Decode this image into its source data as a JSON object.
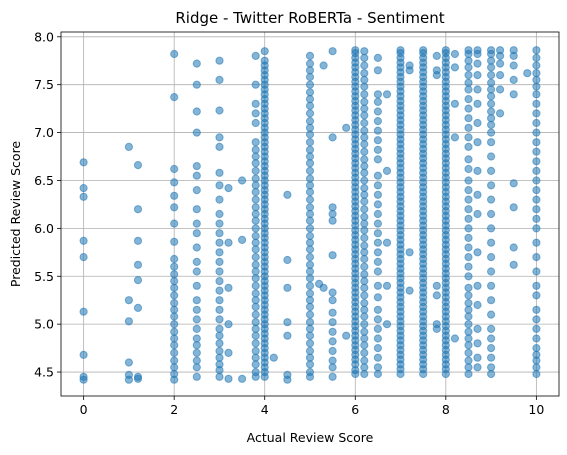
{
  "chart_data": {
    "type": "scatter",
    "title": "Ridge - Twitter RoBERTa - Sentiment",
    "xlabel": "Actual Review Score",
    "ylabel": "Predicted Review Score",
    "xlim": [
      -0.5,
      10.5
    ],
    "ylim": [
      4.25,
      8.05
    ],
    "xticks": [
      0,
      2,
      4,
      6,
      8,
      10
    ],
    "yticks": [
      4.5,
      5.0,
      5.5,
      6.0,
      6.5,
      7.0,
      7.5,
      8.0
    ],
    "xtick_labels": [
      "0",
      "2",
      "4",
      "6",
      "8",
      "10"
    ],
    "ytick_labels": [
      "4.5",
      "5.0",
      "5.5",
      "6.0",
      "6.5",
      "7.0",
      "7.5",
      "8.0"
    ],
    "grid": true,
    "color": "#1f77b4",
    "series": [
      {
        "columns": [
          {
            "x": 0,
            "y": [
              4.42,
              4.45,
              4.68,
              5.13,
              5.7,
              5.87,
              6.33,
              6.42,
              6.69
            ]
          },
          {
            "x": 1,
            "y": [
              4.42,
              4.47,
              4.6,
              5.03,
              5.25,
              6.85
            ]
          },
          {
            "x": 1.2,
            "y": [
              4.43,
              4.45,
              5.17,
              5.46,
              5.62,
              5.87,
              6.2,
              6.66
            ]
          },
          {
            "x": 2,
            "y": [
              4.42,
              4.48,
              4.55,
              4.62,
              4.7,
              4.78,
              4.85,
              4.92,
              5.0,
              5.08,
              5.15,
              5.22,
              5.3,
              5.38,
              5.45,
              5.52,
              5.6,
              5.68,
              5.86,
              6.05,
              6.22,
              6.34,
              6.48,
              6.62,
              7.37,
              7.82
            ]
          },
          {
            "x": 2.5,
            "y": [
              4.45,
              4.55,
              4.62,
              4.7,
              4.78,
              4.85,
              4.95,
              5.05,
              5.15,
              5.25,
              5.4,
              5.55,
              5.65,
              5.8,
              5.95,
              6.05,
              6.2,
              6.4,
              6.55,
              6.65,
              7.0,
              7.22,
              7.5,
              7.72
            ]
          },
          {
            "x": 3,
            "y": [
              4.45,
              4.52,
              4.58,
              4.65,
              4.72,
              4.8,
              4.88,
              4.95,
              5.05,
              5.15,
              5.25,
              5.35,
              5.45,
              5.55,
              5.65,
              5.75,
              5.85,
              5.95,
              6.05,
              6.15,
              6.3,
              6.45,
              6.58,
              6.85,
              6.95,
              7.23,
              7.55,
              7.75
            ]
          },
          {
            "x": 3.2,
            "y": [
              4.43,
              4.7,
              5.0,
              5.38,
              5.85,
              6.42
            ]
          },
          {
            "x": 3.5,
            "y": [
              4.43,
              5.88,
              6.5
            ]
          },
          {
            "x": 3.8,
            "y": [
              4.45,
              4.5,
              4.58,
              4.65,
              4.72,
              4.8,
              4.88,
              4.95,
              5.02,
              5.1,
              5.18,
              5.25,
              5.32,
              5.4,
              5.48,
              5.55,
              5.62,
              5.7,
              5.78,
              5.85,
              5.92,
              6.0,
              6.08,
              6.15,
              6.22,
              6.3,
              6.38,
              6.45,
              6.52,
              6.6,
              6.68,
              6.75,
              6.82,
              6.9,
              7.1,
              7.2,
              7.3,
              7.5,
              7.8
            ]
          },
          {
            "x": 4,
            "y": [
              4.45,
              4.5,
              4.55,
              4.6,
              4.65,
              4.7,
              4.75,
              4.8,
              4.85,
              4.9,
              4.95,
              5.0,
              5.05,
              5.1,
              5.15,
              5.2,
              5.25,
              5.3,
              5.35,
              5.4,
              5.45,
              5.5,
              5.55,
              5.6,
              5.65,
              5.7,
              5.75,
              5.8,
              5.85,
              5.9,
              5.95,
              6.0,
              6.05,
              6.1,
              6.15,
              6.2,
              6.25,
              6.3,
              6.35,
              6.4,
              6.45,
              6.5,
              6.55,
              6.6,
              6.65,
              6.7,
              6.75,
              6.8,
              6.85,
              6.9,
              6.95,
              7.0,
              7.05,
              7.1,
              7.15,
              7.2,
              7.25,
              7.3,
              7.35,
              7.4,
              7.45,
              7.5,
              7.55,
              7.6,
              7.65,
              7.7,
              7.75,
              7.85
            ]
          },
          {
            "x": 4.2,
            "y": [
              4.65
            ]
          },
          {
            "x": 4.5,
            "y": [
              4.42,
              4.47,
              4.88,
              5.02,
              5.38,
              5.67,
              6.35
            ]
          },
          {
            "x": 5,
            "y": [
              4.45,
              4.5,
              4.58,
              4.65,
              4.72,
              4.8,
              4.88,
              4.95,
              5.02,
              5.1,
              5.18,
              5.25,
              5.32,
              5.4,
              5.48,
              5.55,
              5.62,
              5.7,
              5.78,
              5.85,
              5.92,
              6.0,
              6.08,
              6.15,
              6.22,
              6.3,
              6.38,
              6.45,
              6.52,
              6.6,
              6.68,
              6.75,
              6.82,
              6.9,
              6.98,
              7.05,
              7.12,
              7.2,
              7.28,
              7.35,
              7.42,
              7.5,
              7.58,
              7.65,
              7.72,
              7.8
            ]
          },
          {
            "x": 5.2,
            "y": [
              5.42
            ]
          },
          {
            "x": 5.3,
            "y": [
              5.38,
              7.7
            ]
          },
          {
            "x": 5.5,
            "y": [
              4.45,
              4.55,
              4.62,
              4.72,
              4.82,
              4.92,
              5.02,
              5.12,
              5.25,
              5.33,
              5.72,
              6.08,
              6.15,
              6.22,
              6.95,
              7.85
            ]
          },
          {
            "x": 5.8,
            "y": [
              4.88,
              7.05
            ]
          },
          {
            "x": 6,
            "y": [
              4.48,
              4.52,
              4.58,
              4.63,
              4.68,
              4.73,
              4.78,
              4.83,
              4.88,
              4.93,
              4.98,
              5.03,
              5.08,
              5.13,
              5.18,
              5.23,
              5.28,
              5.33,
              5.38,
              5.43,
              5.48,
              5.53,
              5.58,
              5.63,
              5.68,
              5.73,
              5.78,
              5.83,
              5.88,
              5.93,
              5.98,
              6.03,
              6.08,
              6.13,
              6.18,
              6.23,
              6.28,
              6.33,
              6.38,
              6.43,
              6.48,
              6.53,
              6.58,
              6.63,
              6.68,
              6.73,
              6.78,
              6.83,
              6.88,
              6.93,
              6.98,
              7.03,
              7.08,
              7.13,
              7.18,
              7.23,
              7.28,
              7.33,
              7.38,
              7.43,
              7.48,
              7.53,
              7.58,
              7.63,
              7.68,
              7.73,
              7.78,
              7.83,
              7.86
            ]
          },
          {
            "x": 6.2,
            "y": [
              4.48,
              4.55,
              4.62,
              4.7,
              4.78,
              4.85,
              4.92,
              5.0,
              5.08,
              5.15,
              5.22,
              5.3,
              5.38,
              5.45,
              5.52,
              5.6,
              5.68,
              5.75,
              5.82,
              5.9,
              5.98,
              6.05,
              6.12,
              6.2,
              6.28,
              6.35,
              6.42,
              6.5,
              6.58,
              6.65,
              6.72,
              6.8,
              6.88,
              6.95,
              7.02,
              7.1,
              7.18,
              7.25,
              7.32,
              7.4,
              7.48,
              7.55,
              7.62,
              7.7,
              7.78,
              7.85
            ]
          },
          {
            "x": 6.5,
            "y": [
              4.48,
              4.55,
              4.65,
              4.75,
              4.85,
              4.95,
              5.05,
              5.15,
              5.28,
              5.4,
              5.55,
              5.65,
              5.75,
              5.85,
              5.95,
              6.05,
              6.15,
              6.25,
              6.35,
              6.45,
              6.55,
              6.72,
              6.82,
              6.92,
              7.02,
              7.12,
              7.22,
              7.32,
              7.4,
              7.65,
              7.78
            ]
          },
          {
            "x": 6.7,
            "y": [
              5.0,
              5.4,
              5.85,
              6.6,
              7.4
            ]
          },
          {
            "x": 7,
            "y": [
              4.48,
              4.53,
              4.58,
              4.63,
              4.68,
              4.73,
              4.78,
              4.83,
              4.88,
              4.93,
              4.98,
              5.03,
              5.08,
              5.13,
              5.18,
              5.23,
              5.28,
              5.33,
              5.38,
              5.43,
              5.48,
              5.53,
              5.58,
              5.63,
              5.68,
              5.73,
              5.78,
              5.83,
              5.88,
              5.93,
              5.98,
              6.03,
              6.08,
              6.13,
              6.18,
              6.23,
              6.28,
              6.33,
              6.38,
              6.43,
              6.48,
              6.53,
              6.58,
              6.63,
              6.68,
              6.73,
              6.78,
              6.83,
              6.88,
              6.93,
              6.98,
              7.03,
              7.08,
              7.13,
              7.18,
              7.23,
              7.28,
              7.33,
              7.38,
              7.43,
              7.48,
              7.53,
              7.58,
              7.63,
              7.68,
              7.73,
              7.78,
              7.83,
              7.86
            ]
          },
          {
            "x": 7.2,
            "y": [
              5.35,
              5.75,
              7.65,
              7.7
            ]
          },
          {
            "x": 7.5,
            "y": [
              4.48,
              4.53,
              4.58,
              4.63,
              4.68,
              4.73,
              4.78,
              4.83,
              4.88,
              4.93,
              4.98,
              5.03,
              5.08,
              5.13,
              5.18,
              5.23,
              5.28,
              5.33,
              5.38,
              5.43,
              5.48,
              5.53,
              5.58,
              5.63,
              5.68,
              5.73,
              5.78,
              5.83,
              5.88,
              5.93,
              5.98,
              6.03,
              6.08,
              6.13,
              6.18,
              6.23,
              6.28,
              6.33,
              6.38,
              6.43,
              6.48,
              6.53,
              6.58,
              6.63,
              6.68,
              6.73,
              6.78,
              6.83,
              6.88,
              6.93,
              6.98,
              7.03,
              7.08,
              7.13,
              7.18,
              7.23,
              7.28,
              7.33,
              7.38,
              7.43,
              7.48,
              7.53,
              7.58,
              7.63,
              7.68,
              7.73,
              7.78,
              7.83,
              7.86
            ]
          },
          {
            "x": 7.8,
            "y": [
              4.95,
              5.0,
              5.3,
              5.4,
              7.6,
              7.65,
              7.8
            ]
          },
          {
            "x": 8,
            "y": [
              4.48,
              4.53,
              4.58,
              4.63,
              4.68,
              4.73,
              4.78,
              4.83,
              4.88,
              4.93,
              4.98,
              5.03,
              5.08,
              5.13,
              5.18,
              5.23,
              5.28,
              5.33,
              5.38,
              5.43,
              5.48,
              5.53,
              5.58,
              5.63,
              5.68,
              5.73,
              5.78,
              5.83,
              5.88,
              5.93,
              5.98,
              6.03,
              6.08,
              6.13,
              6.18,
              6.23,
              6.28,
              6.33,
              6.38,
              6.43,
              6.48,
              6.53,
              6.58,
              6.63,
              6.68,
              6.73,
              6.78,
              6.83,
              6.88,
              6.93,
              6.98,
              7.03,
              7.08,
              7.13,
              7.18,
              7.23,
              7.28,
              7.33,
              7.38,
              7.43,
              7.48,
              7.53,
              7.58,
              7.63,
              7.68,
              7.73,
              7.78,
              7.83,
              7.86
            ]
          },
          {
            "x": 8.2,
            "y": [
              4.85,
              6.95,
              7.3,
              7.68,
              7.82
            ]
          },
          {
            "x": 8.5,
            "y": [
              4.48,
              4.55,
              4.62,
              4.7,
              4.78,
              4.85,
              4.92,
              5.0,
              5.08,
              5.15,
              5.22,
              5.3,
              5.38,
              5.5,
              5.6,
              5.7,
              5.8,
              5.9,
              6.0,
              6.1,
              6.2,
              6.3,
              6.4,
              6.5,
              6.62,
              6.72,
              6.85,
              6.95,
              7.05,
              7.15,
              7.25,
              7.35,
              7.45,
              7.52,
              7.6,
              7.68,
              7.75,
              7.82,
              7.86
            ]
          },
          {
            "x": 8.7,
            "y": [
              4.55,
              4.65,
              4.8,
              4.95,
              5.2,
              5.4,
              5.75,
              6.15,
              6.35,
              6.6,
              6.9,
              7.1,
              7.3,
              7.45,
              7.6,
              7.72,
              7.82,
              7.86
            ]
          },
          {
            "x": 9,
            "y": [
              4.48,
              4.55,
              4.65,
              4.75,
              4.85,
              4.95,
              5.1,
              5.25,
              5.4,
              5.55,
              5.7,
              5.85,
              6.0,
              6.15,
              6.3,
              6.45,
              6.6,
              6.75,
              6.9,
              7.0,
              7.08,
              7.15,
              7.22,
              7.3,
              7.38,
              7.45,
              7.52,
              7.6,
              7.68,
              7.75,
              7.82,
              7.86
            ]
          },
          {
            "x": 9.2,
            "y": [
              7.2,
              7.45,
              7.6,
              7.72,
              7.8,
              7.86
            ]
          },
          {
            "x": 9.5,
            "y": [
              5.62,
              5.8,
              6.22,
              6.47,
              7.4,
              7.55,
              7.7,
              7.8,
              7.86
            ]
          },
          {
            "x": 9.8,
            "y": [
              7.62
            ]
          },
          {
            "x": 10,
            "y": [
              4.48,
              4.55,
              4.62,
              4.68,
              4.75,
              4.85,
              4.95,
              5.05,
              5.15,
              5.3,
              5.4,
              5.55,
              5.7,
              5.85,
              6.0,
              6.1,
              6.2,
              6.3,
              6.4,
              6.5,
              6.6,
              6.7,
              6.8,
              6.9,
              7.0,
              7.1,
              7.2,
              7.3,
              7.4,
              7.48,
              7.55,
              7.62,
              7.7,
              7.78,
              7.86
            ]
          }
        ]
      }
    ]
  }
}
